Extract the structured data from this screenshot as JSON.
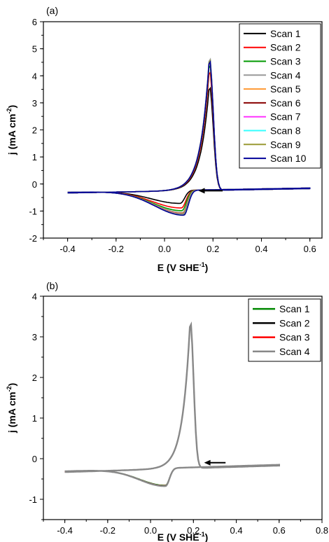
{
  "chart_data": [
    {
      "type": "line",
      "panel_label": "(a)",
      "xlabel": "E (V SHE",
      "xlabel_sup": "-1",
      "xlabel_end": ")",
      "ylabel": "j (mA cm",
      "ylabel_sup": "-2",
      "ylabel_end": ")",
      "xlim": [
        -0.5,
        0.65
      ],
      "ylim": [
        -2,
        6
      ],
      "xticks": [
        -0.4,
        -0.2,
        0.0,
        0.2,
        0.4,
        0.6
      ],
      "xtick_labels": [
        "-0.4",
        "-0.2",
        "0.0",
        "0.2",
        "0.4",
        "0.6"
      ],
      "yticks": [
        -2,
        -1,
        0,
        1,
        2,
        3,
        4,
        5,
        6
      ],
      "ytick_labels": [
        "-2",
        "-1",
        "0",
        "1",
        "2",
        "3",
        "4",
        "5",
        "6"
      ],
      "legend_position": "top-right",
      "grid": false,
      "annotations": [
        {
          "type": "arrow",
          "direction": "left",
          "x_from": 0.24,
          "x_to": 0.14,
          "y": -0.25
        }
      ],
      "series": [
        {
          "name": "Scan 1",
          "color": "#000000",
          "peak": 3.9,
          "cathodic_min": -0.78,
          "cathodic_x": 0.065
        },
        {
          "name": "Scan 2",
          "color": "#ff0000",
          "peak": 4.5,
          "cathodic_min": -0.95,
          "cathodic_x": 0.07
        },
        {
          "name": "Scan 3",
          "color": "#009900",
          "peak": 4.75,
          "cathodic_min": -1.05,
          "cathodic_x": 0.072
        },
        {
          "name": "Scan 4",
          "color": "#999999",
          "peak": 5.0,
          "cathodic_min": -1.12,
          "cathodic_x": 0.075
        },
        {
          "name": "Scan 5",
          "color": "#ff9933",
          "peak": 4.9,
          "cathodic_min": -1.15,
          "cathodic_x": 0.076
        },
        {
          "name": "Scan 6",
          "color": "#880000",
          "peak": 4.9,
          "cathodic_min": -1.17,
          "cathodic_x": 0.077
        },
        {
          "name": "Scan 7",
          "color": "#ff33ff",
          "peak": 4.95,
          "cathodic_min": -1.18,
          "cathodic_x": 0.078
        },
        {
          "name": "Scan 8",
          "color": "#33ffff",
          "peak": 4.95,
          "cathodic_min": -1.19,
          "cathodic_x": 0.078
        },
        {
          "name": "Scan 9",
          "color": "#999933",
          "peak": 4.95,
          "cathodic_min": -1.2,
          "cathodic_x": 0.079
        },
        {
          "name": "Scan 10",
          "color": "#000099",
          "peak": 4.9,
          "cathodic_min": -1.22,
          "cathodic_x": 0.08
        }
      ]
    },
    {
      "type": "line",
      "panel_label": "(b)",
      "xlabel": "E (V SHE",
      "xlabel_sup": "-1",
      "xlabel_end": ")",
      "ylabel": "j (mA cm",
      "ylabel_sup": "-2",
      "ylabel_end": ")",
      "xlim": [
        -0.5,
        0.8
      ],
      "ylim": [
        -1.5,
        4
      ],
      "xticks": [
        -0.4,
        -0.2,
        0.0,
        0.2,
        0.4,
        0.6,
        0.8
      ],
      "xtick_labels": [
        "-0.4",
        "-0.2",
        "0.0",
        "0.2",
        "0.4",
        "0.6",
        "0.8"
      ],
      "yticks": [
        -1,
        0,
        1,
        2,
        3,
        4
      ],
      "ytick_labels": [
        "-1",
        "0",
        "1",
        "2",
        "3",
        "4"
      ],
      "legend_position": "top-right",
      "grid": false,
      "annotations": [
        {
          "type": "arrow",
          "direction": "left",
          "x_from": 0.35,
          "x_to": 0.25,
          "y": -0.1
        }
      ],
      "series": [
        {
          "name": "Scan 1",
          "color": "#008800",
          "peak": 3.65,
          "cathodic_min": -0.72,
          "cathodic_x": 0.07
        },
        {
          "name": "Scan 2",
          "color": "#000000",
          "peak": 3.65,
          "cathodic_min": -0.73,
          "cathodic_x": 0.07
        },
        {
          "name": "Scan 3",
          "color": "#ff0000",
          "peak": 3.65,
          "cathodic_min": -0.73,
          "cathodic_x": 0.07
        },
        {
          "name": "Scan 4",
          "color": "#888888",
          "peak": 3.65,
          "cathodic_min": -0.74,
          "cathodic_x": 0.07
        }
      ]
    }
  ]
}
